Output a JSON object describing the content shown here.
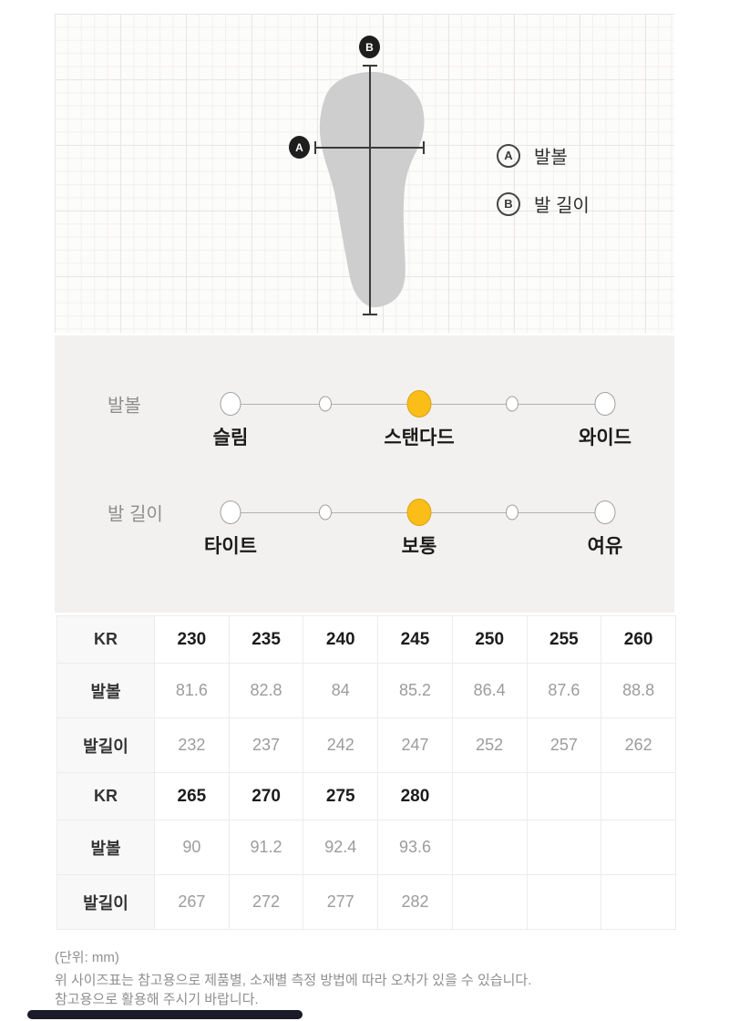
{
  "diagram": {
    "marker_a": "A",
    "marker_b": "B",
    "legend": [
      {
        "key": "A",
        "label": "발볼"
      },
      {
        "key": "B",
        "label": "발 길이"
      }
    ],
    "insole_color": "#cecece",
    "line_color": "#3a3a3a"
  },
  "sliders": {
    "accent_color": "#fbbd17",
    "rows": [
      {
        "label": "발볼",
        "options": [
          "슬림",
          "스탠다드",
          "와이드"
        ],
        "selected": "스탠다드"
      },
      {
        "label": "발 길이",
        "options": [
          "타이트",
          "보통",
          "여유"
        ],
        "selected": "보통"
      }
    ]
  },
  "table": {
    "unit": "mm",
    "rows": [
      {
        "header": "KR",
        "type": "size",
        "cells": [
          "230",
          "235",
          "240",
          "245",
          "250",
          "255",
          "260"
        ]
      },
      {
        "header": "발볼",
        "type": "value",
        "cells": [
          "81.6",
          "82.8",
          "84",
          "85.2",
          "86.4",
          "87.6",
          "88.8"
        ]
      },
      {
        "header": "발길이",
        "type": "value",
        "cells": [
          "232",
          "237",
          "242",
          "247",
          "252",
          "257",
          "262"
        ]
      },
      {
        "header": "KR",
        "type": "size",
        "cells": [
          "265",
          "270",
          "275",
          "280",
          "",
          "",
          ""
        ]
      },
      {
        "header": "발볼",
        "type": "value",
        "cells": [
          "90",
          "91.2",
          "92.4",
          "93.6",
          "",
          "",
          ""
        ]
      },
      {
        "header": "발길이",
        "type": "value",
        "cells": [
          "267",
          "272",
          "277",
          "282",
          "",
          "",
          ""
        ]
      }
    ]
  },
  "notes": {
    "unit": "(단위: mm)",
    "line1": "위 사이즈표는 참고용으로 제품별, 소재별 측정 방법에 따라 오차가 있을 수 있습니다.",
    "line2": "참고용으로 활용해 주시기 바랍니다."
  }
}
